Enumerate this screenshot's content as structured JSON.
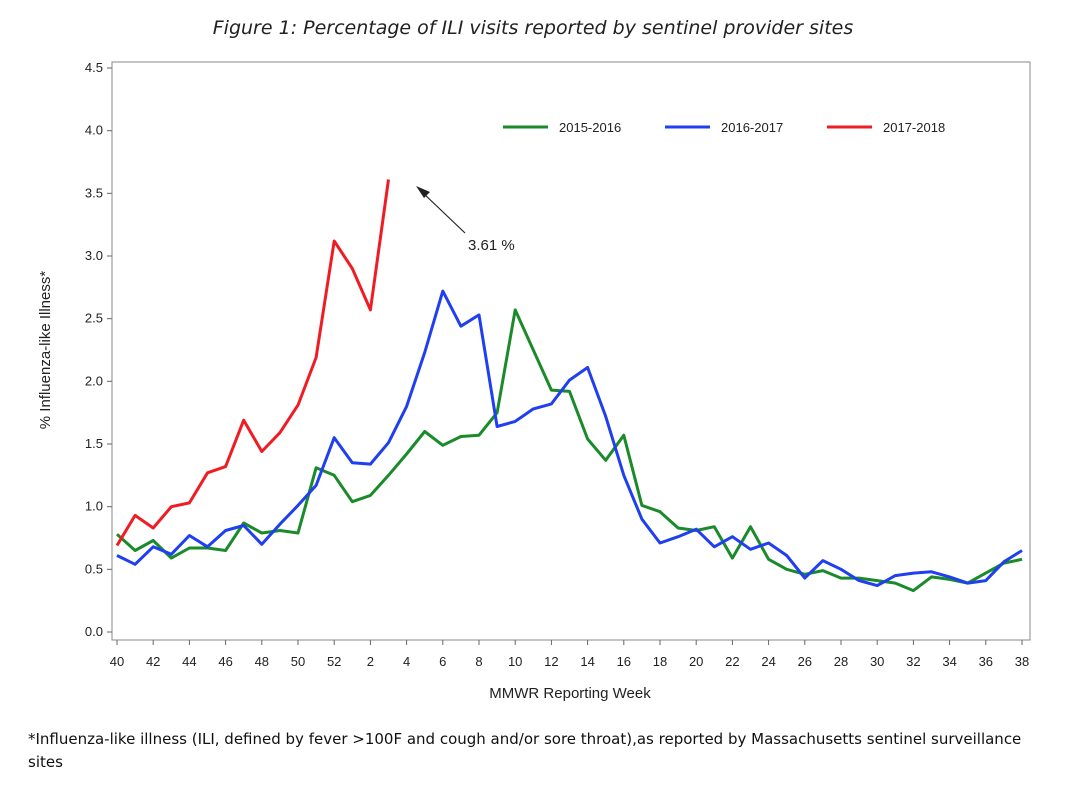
{
  "chart_data": {
    "type": "line",
    "title": "Figure 1: Percentage of ILI visits reported by sentinel provider sites",
    "xlabel": "MMWR Reporting Week",
    "ylabel": "% Influenza-like Illness*",
    "annotation": "3.61 %",
    "footnote": "*Influenza-like illness (ILI, defined by fever >100F and cough and/or sore throat),as reported by Massachusetts sentinel surveillance sites",
    "categories": [
      40,
      null,
      42,
      null,
      44,
      null,
      46,
      null,
      48,
      null,
      50,
      null,
      52,
      null,
      2,
      null,
      4,
      null,
      6,
      null,
      8,
      null,
      10,
      null,
      12,
      null,
      14,
      null,
      16,
      null,
      18,
      null,
      20,
      null,
      22,
      null,
      24,
      null,
      26,
      null,
      28,
      null,
      30,
      null,
      32,
      null,
      34,
      null,
      36,
      null,
      38
    ],
    "ylim": [
      0,
      4.5
    ],
    "yticks": [
      {
        "value": 0,
        "label": "0.0"
      },
      {
        "value": 0.5,
        "label": "0.5"
      },
      {
        "value": 1,
        "label": "1.0"
      },
      {
        "value": 1.5,
        "label": "1.5"
      },
      {
        "value": 2,
        "label": "2.0"
      },
      {
        "value": 2.5,
        "label": "2.5"
      },
      {
        "value": 3,
        "label": "3.0"
      },
      {
        "value": 3.5,
        "label": "3.5"
      },
      {
        "value": 4,
        "label": "4.0"
      },
      {
        "value": 4.5,
        "label": "4.5"
      }
    ],
    "legend": "top-right",
    "series": [
      {
        "name": "2015-2016",
        "color": "#1a8a2a",
        "values": [
          0.78,
          0.65,
          0.73,
          0.59,
          0.67,
          0.67,
          0.65,
          0.87,
          0.79,
          0.81,
          0.79,
          1.31,
          1.25,
          1.04,
          1.09,
          1.25,
          1.42,
          1.6,
          1.49,
          1.56,
          1.57,
          1.75,
          2.57,
          2.25,
          1.93,
          1.92,
          1.54,
          1.37,
          1.57,
          1.01,
          0.96,
          0.83,
          0.81,
          0.84,
          0.59,
          0.84,
          0.58,
          0.5,
          0.46,
          0.49,
          0.43,
          0.43,
          0.41,
          0.39,
          0.33,
          0.44,
          0.42,
          0.39,
          0.47,
          0.55,
          0.58
        ]
      },
      {
        "name": "2016-2017",
        "color": "#1f3ff0",
        "values": [
          0.61,
          0.54,
          0.68,
          0.62,
          0.77,
          0.68,
          0.81,
          0.85,
          0.7,
          0.86,
          1.01,
          1.17,
          1.55,
          1.35,
          1.34,
          1.51,
          1.8,
          2.23,
          2.72,
          2.44,
          2.53,
          1.64,
          1.68,
          1.78,
          1.82,
          2.01,
          2.11,
          1.72,
          1.25,
          0.9,
          0.71,
          0.76,
          0.82,
          0.68,
          0.76,
          0.66,
          0.71,
          0.61,
          0.43,
          0.57,
          0.5,
          0.41,
          0.37,
          0.45,
          0.47,
          0.48,
          0.44,
          0.39,
          0.41,
          0.56,
          0.65
        ]
      },
      {
        "name": "2017-2018",
        "color": "#f01c24",
        "values": [
          0.69,
          0.93,
          0.83,
          1.0,
          1.03,
          1.27,
          1.32,
          1.69,
          1.44,
          1.59,
          1.81,
          2.19,
          3.12,
          2.9,
          2.57,
          3.61,
          null,
          null,
          null,
          null,
          null,
          null,
          null,
          null,
          null,
          null,
          null,
          null,
          null,
          null,
          null,
          null,
          null,
          null,
          null,
          null,
          null,
          null,
          null,
          null,
          null,
          null,
          null,
          null,
          null,
          null,
          null,
          null,
          null,
          null,
          null
        ]
      }
    ]
  }
}
